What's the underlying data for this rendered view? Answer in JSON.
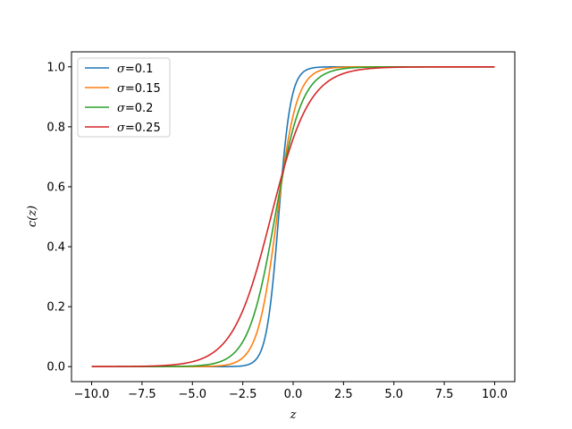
{
  "chart_data": {
    "type": "line",
    "title": "",
    "xlabel": "z",
    "ylabel": "c(z)",
    "xlim": [
      -11.0,
      11.0
    ],
    "ylim": [
      -0.05,
      1.05
    ],
    "xticks": [
      -10.0,
      -7.5,
      -5.0,
      -2.5,
      0.0,
      2.5,
      5.0,
      7.5,
      10.0
    ],
    "xtick_labels": [
      "−10.0",
      "−7.5",
      "−5.0",
      "−2.5",
      "0.0",
      "2.5",
      "5.0",
      "7.5",
      "10.0"
    ],
    "yticks": [
      0.0,
      0.2,
      0.4,
      0.6,
      0.8,
      1.0
    ],
    "ytick_labels": [
      "0.0",
      "0.2",
      "0.4",
      "0.6",
      "0.8",
      "1.0"
    ],
    "grid": false,
    "legend_position": "upper-left",
    "x_domain": [
      -10,
      10
    ],
    "series": [
      {
        "name": "σ=0.1",
        "color": "#1f77b4",
        "params": {
          "center": -0.72,
          "slope": 3.3
        }
      },
      {
        "name": "σ=0.15",
        "color": "#ff7f0e",
        "params": {
          "center": -0.8,
          "slope": 2.05
        }
      },
      {
        "name": "σ=0.2",
        "color": "#2ca02c",
        "params": {
          "center": -0.9,
          "slope": 1.5
        }
      },
      {
        "name": "σ=0.25",
        "color": "#d62728",
        "params": {
          "center": -1.1,
          "slope": 1.05
        }
      }
    ]
  }
}
